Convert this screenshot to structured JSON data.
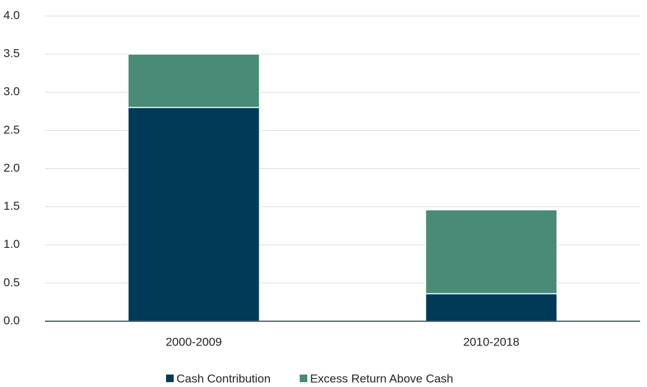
{
  "chart_data": {
    "type": "stacked_bar",
    "categories": [
      "2000-2009",
      "2010-2018"
    ],
    "series": [
      {
        "name": "Cash Contribution",
        "color": "#003a57",
        "values": [
          2.8,
          0.36
        ]
      },
      {
        "name": "Excess Return Above Cash",
        "color": "#4a8b78",
        "values": [
          0.7,
          1.1
        ]
      }
    ],
    "ylim": [
      0,
      4
    ],
    "yticks": [
      {
        "value": 0,
        "label": "0.0"
      },
      0.5,
      {
        "value": 1,
        "label": "1.0"
      },
      1.5,
      {
        "value": 2,
        "label": "2.0"
      },
      2.5,
      {
        "value": 3,
        "label": "3.0"
      },
      3.5,
      {
        "value": 4,
        "label": "4.0"
      }
    ],
    "grid": true,
    "legend": "bottom"
  }
}
